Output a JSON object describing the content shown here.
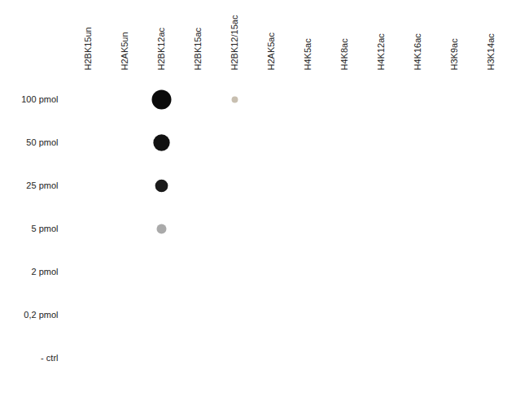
{
  "chart_data": {
    "type": "dot_grid",
    "x": [
      "H2BK15un",
      "H2AK5un",
      "H2BK12ac",
      "H2BK15ac",
      "H2BK12/15ac",
      "H2AK5ac",
      "H4K5ac",
      "H4K8ac",
      "H4K12ac",
      "H4K16ac",
      "H3K9ac",
      "H3K14ac"
    ],
    "y": [
      "100 pmol",
      "50 pmol",
      "25 pmol",
      "5 pmol",
      "2 pmol",
      "0,2 pmol",
      "- ctrl"
    ],
    "dots": [
      {
        "x": "H2BK12ac",
        "y": "100 pmol",
        "size": 280,
        "color": "#0a0a0a"
      },
      {
        "x": "H2BK12ac",
        "y": "50 pmol",
        "size": 200,
        "color": "#111111"
      },
      {
        "x": "H2BK12ac",
        "y": "25 pmol",
        "size": 120,
        "color": "#1a1a1a"
      },
      {
        "x": "H2BK12ac",
        "y": "5 pmol",
        "size": 70,
        "color": "#aaaaaa"
      },
      {
        "x": "H2BK12/15ac",
        "y": "100 pmol",
        "size": 30,
        "color": "#c8bfb0"
      }
    ],
    "grid": false
  }
}
